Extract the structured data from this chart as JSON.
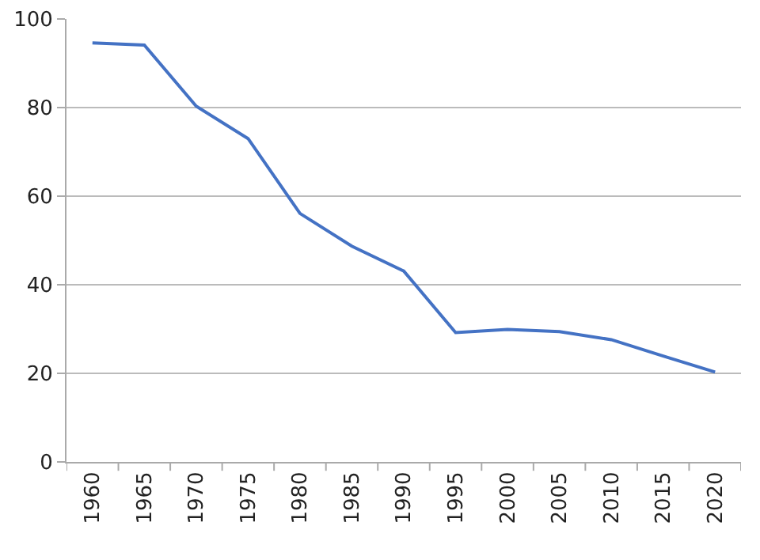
{
  "chart_data": {
    "type": "line",
    "categories": [
      "1960",
      "1965",
      "1970",
      "1975",
      "1980",
      "1985",
      "1990",
      "1995",
      "2000",
      "2005",
      "2010",
      "2015",
      "2020"
    ],
    "series": [
      {
        "color": "#4472c4",
        "values": [
          94.6,
          94.1,
          80.3,
          73,
          56.1,
          48.7,
          43.1,
          29.2,
          29.9,
          29.4,
          27.6,
          23.9,
          20.3
        ]
      }
    ],
    "ylim": [
      0,
      100
    ],
    "yticks": [
      0,
      20,
      40,
      60,
      80,
      100
    ],
    "grid": "y",
    "legend": false,
    "marker": "none",
    "line_style": "solid"
  }
}
